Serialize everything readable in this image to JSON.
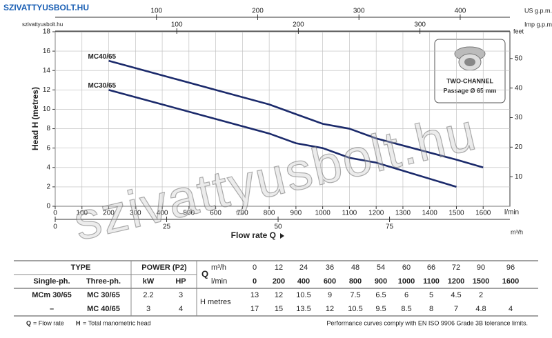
{
  "logo": {
    "brand": "SZIVATTYUSBOLT.HU",
    "site": "szivattyusbolt.hu"
  },
  "watermark": "szivattyusbolt.hu",
  "inset": {
    "line1": "TWO-CHANNEL",
    "line2": "Passage Ø 65 mm"
  },
  "chart_data": {
    "type": "line",
    "xlabel": "Flow rate Q",
    "ylabel": "Head H (metres)",
    "x_unit": "l/min",
    "x": [
      200,
      400,
      600,
      800,
      900,
      1000,
      1100,
      1200,
      1500,
      1600
    ],
    "series": [
      {
        "name": "MC40/65",
        "color": "#1b2a6b",
        "values": [
          15,
          13.5,
          12,
          10.5,
          9.5,
          8.5,
          8,
          7,
          4.8,
          4
        ]
      },
      {
        "name": "MC30/65",
        "color": "#1b2a6b",
        "values": [
          12,
          10.5,
          9,
          7.5,
          6.5,
          6,
          5,
          4.5,
          2,
          null
        ]
      }
    ],
    "xlim": [
      0,
      1700
    ],
    "xticks": [
      0,
      100,
      200,
      300,
      400,
      500,
      600,
      700,
      800,
      900,
      1000,
      1100,
      1200,
      1300,
      1400,
      1500,
      1600
    ],
    "ylim": [
      0,
      18
    ],
    "yticks": [
      0,
      2,
      4,
      6,
      8,
      10,
      12,
      14,
      16,
      18
    ],
    "grid": true,
    "extra_axes": [
      {
        "label": "US g.p.m.",
        "side": "top",
        "lim": [
          0,
          449.1
        ],
        "ticks": [
          100,
          200,
          300,
          400
        ]
      },
      {
        "label": "Imp g.p.m.",
        "side": "top",
        "lim": [
          0,
          374
        ],
        "ticks": [
          100,
          200,
          300
        ]
      },
      {
        "label": "m³/h",
        "side": "bottom",
        "lim": [
          0,
          102
        ],
        "ticks": [
          0,
          25,
          50,
          75
        ]
      },
      {
        "label": "feet",
        "side": "right",
        "lim": [
          0,
          59.06
        ],
        "ticks": [
          10,
          20,
          30,
          40,
          50
        ]
      }
    ]
  },
  "table": {
    "type_header": "TYPE",
    "power_header": "POWER (P2)",
    "single_ph": "Single-ph.",
    "three_ph": "Three-ph.",
    "kw": "kW",
    "hp": "HP",
    "q_symbol": "Q",
    "q_m3h_label": "m³/h",
    "q_lmin_label": "l/min",
    "h_label": "H metres",
    "q_m3h": [
      0,
      12,
      24,
      36,
      48,
      54,
      60,
      66,
      72,
      90,
      96
    ],
    "q_lmin": [
      0,
      200,
      400,
      600,
      800,
      900,
      1000,
      1100,
      1200,
      1500,
      1600
    ],
    "rows": [
      {
        "single": "MCm 30/65",
        "three": "MC 30/65",
        "kw": 2.2,
        "hp": 3,
        "h": [
          13,
          12,
          10.5,
          9,
          7.5,
          6.5,
          6,
          5,
          4.5,
          2,
          null
        ]
      },
      {
        "single": "–",
        "three": "MC 40/65",
        "kw": 3,
        "hp": 4,
        "h": [
          17,
          15,
          13.5,
          12,
          10.5,
          9.5,
          8.5,
          8,
          7,
          4.8,
          4
        ]
      }
    ]
  },
  "footnote": {
    "q": "Q",
    "q_text": "= Flow rate",
    "h": "H",
    "h_text": "= Total manometric head",
    "compliance": "Performance curves comply with EN ISO 9906 Grade 3B tolerance limits."
  }
}
